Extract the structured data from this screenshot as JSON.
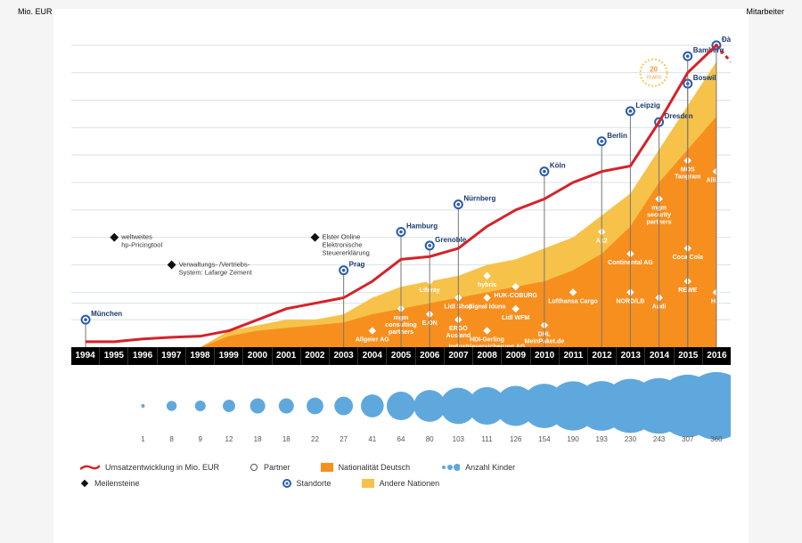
{
  "axis_left_title": "Mio. EUR",
  "axis_right_title": "Mitarbeiter",
  "y_left": {
    "min": 0,
    "max": 60,
    "ticks": [
      5,
      8,
      10,
      15,
      20,
      25,
      30,
      35,
      40,
      45,
      50,
      55
    ]
  },
  "y_right": {
    "min": 0,
    "max": 600,
    "ticks": [
      50,
      80,
      100,
      150,
      200,
      250,
      300,
      350,
      400,
      450,
      500,
      550,
      600
    ]
  },
  "years": [
    "1994",
    "1995",
    "1996",
    "1997",
    "1998",
    "1999",
    "2000",
    "2001",
    "2002",
    "2003",
    "2004",
    "2005",
    "2006",
    "2007",
    "2008",
    "2009",
    "2010",
    "2011",
    "2012",
    "2013",
    "2014",
    "2015",
    "2016"
  ],
  "area_back": [
    0,
    0,
    0,
    0,
    0,
    3,
    4,
    5,
    5,
    6,
    9,
    11,
    12,
    13,
    15,
    16,
    18,
    20,
    24,
    28,
    36,
    44,
    52
  ],
  "area_front": [
    0,
    0,
    0,
    0,
    0,
    2,
    3,
    3.5,
    4,
    4.5,
    6,
    7,
    8,
    9,
    10,
    11,
    12,
    14,
    17,
    22,
    30,
    36,
    42
  ],
  "revenue": [
    1,
    1,
    1.5,
    1.8,
    2,
    3,
    5,
    7,
    8,
    9,
    12,
    16,
    16.5,
    18,
    22,
    25,
    27,
    30,
    32,
    33,
    41,
    50,
    55
  ],
  "revenue_proj": [
    55,
    52
  ],
  "kids": [
    1,
    8,
    9,
    12,
    18,
    18,
    22,
    27,
    41,
    64,
    80,
    103,
    111,
    126,
    154,
    190,
    193,
    230,
    243,
    307,
    360
  ],
  "kids_max": 360,
  "locations": [
    {
      "year": 0,
      "label": "München",
      "y": 5
    },
    {
      "year": 9,
      "label": "Prag",
      "y": 14
    },
    {
      "year": 11,
      "label": "Hamburg",
      "y": 21
    },
    {
      "year": 12,
      "label": "Grenoble",
      "y": 18.5
    },
    {
      "year": 13,
      "label": "Nürnberg",
      "y": 26
    },
    {
      "year": 16,
      "label": "Köln",
      "y": 32
    },
    {
      "year": 18,
      "label": "Berlin",
      "y": 37.5
    },
    {
      "year": 19,
      "label": "Leipzig",
      "y": 43
    },
    {
      "year": 20,
      "label": "Dresden",
      "y": 41
    },
    {
      "year": 21,
      "label": "Boswil",
      "y": 48
    },
    {
      "year": 21,
      "label": "Bamberg",
      "y": 53
    },
    {
      "year": 22,
      "label": "Đà Nẵng",
      "y": 55
    }
  ],
  "milestones": [
    {
      "year": 1,
      "y": 20,
      "text": "weltweites\nhp-Pricingtool"
    },
    {
      "year": 3,
      "y": 15,
      "text": "Verwaltungs- /Vertriebs-\nSystem: Lafarge Zement"
    },
    {
      "year": 8,
      "y": 20,
      "text": "Elster Online\nElektronische\nSteuererklärung"
    }
  ],
  "partners": [
    {
      "year": 10,
      "y": 3,
      "label": "Allgeier AG"
    },
    {
      "year": 11,
      "y": 7,
      "label": "mgm\nconsulting\npartners"
    },
    {
      "year": 12,
      "y": 6,
      "label": "E.ON"
    },
    {
      "year": 12,
      "y": 12,
      "label": "Liferay"
    },
    {
      "year": 13,
      "y": 5,
      "label": "ERGO\nAusland"
    },
    {
      "year": 13,
      "y": 9,
      "label": "Lidl Shop"
    },
    {
      "year": 14,
      "y": 9,
      "label": "Signal Iduna"
    },
    {
      "year": 14,
      "y": 13,
      "label": "hybris"
    },
    {
      "year": 14,
      "y": 3,
      "label": "HDI-Gerling\nIndustrieversicherung AG"
    },
    {
      "year": 15,
      "y": 11,
      "label": "HUK-COBURG"
    },
    {
      "year": 15,
      "y": 7,
      "label": "Lidl WFM"
    },
    {
      "year": 16,
      "y": 4,
      "label": "DHL\nMeinPaket.de"
    },
    {
      "year": 17,
      "y": 10,
      "label": "Lufthansa Cargo"
    },
    {
      "year": 18,
      "y": 21,
      "label": "A12"
    },
    {
      "year": 19,
      "y": 17,
      "label": "Continental AG"
    },
    {
      "year": 19,
      "y": 10,
      "label": "NORD/LB"
    },
    {
      "year": 20,
      "y": 9,
      "label": "Audi"
    },
    {
      "year": 20,
      "y": 27,
      "label": "mgm\nsecurity\npartners"
    },
    {
      "year": 21,
      "y": 12,
      "label": "REWE"
    },
    {
      "year": 21,
      "y": 34,
      "label": "MOS\nTangram"
    },
    {
      "year": 21,
      "y": 18,
      "label": "Coca Cola"
    },
    {
      "year": 22,
      "y": 32,
      "label": "Allianz"
    },
    {
      "year": 22,
      "y": 10,
      "label": "HDI"
    }
  ],
  "colors": {
    "area_back": "#f6c24a",
    "area_front": "#f78f1e",
    "revenue": "#d4232a",
    "grid": "#d8e3ec",
    "bubble": "#5fa8dd",
    "loc_marker": "#2b5ca8"
  },
  "legend": {
    "rev": "Umsatzentwicklung in Mio. EUR",
    "partner": "Partner",
    "nat_de": "Nationalität Deutsch",
    "kids": "Anzahl Kinder",
    "milestone": "Meilensteine",
    "loc": "Standorte",
    "nat_other": "Andere Nationen"
  }
}
